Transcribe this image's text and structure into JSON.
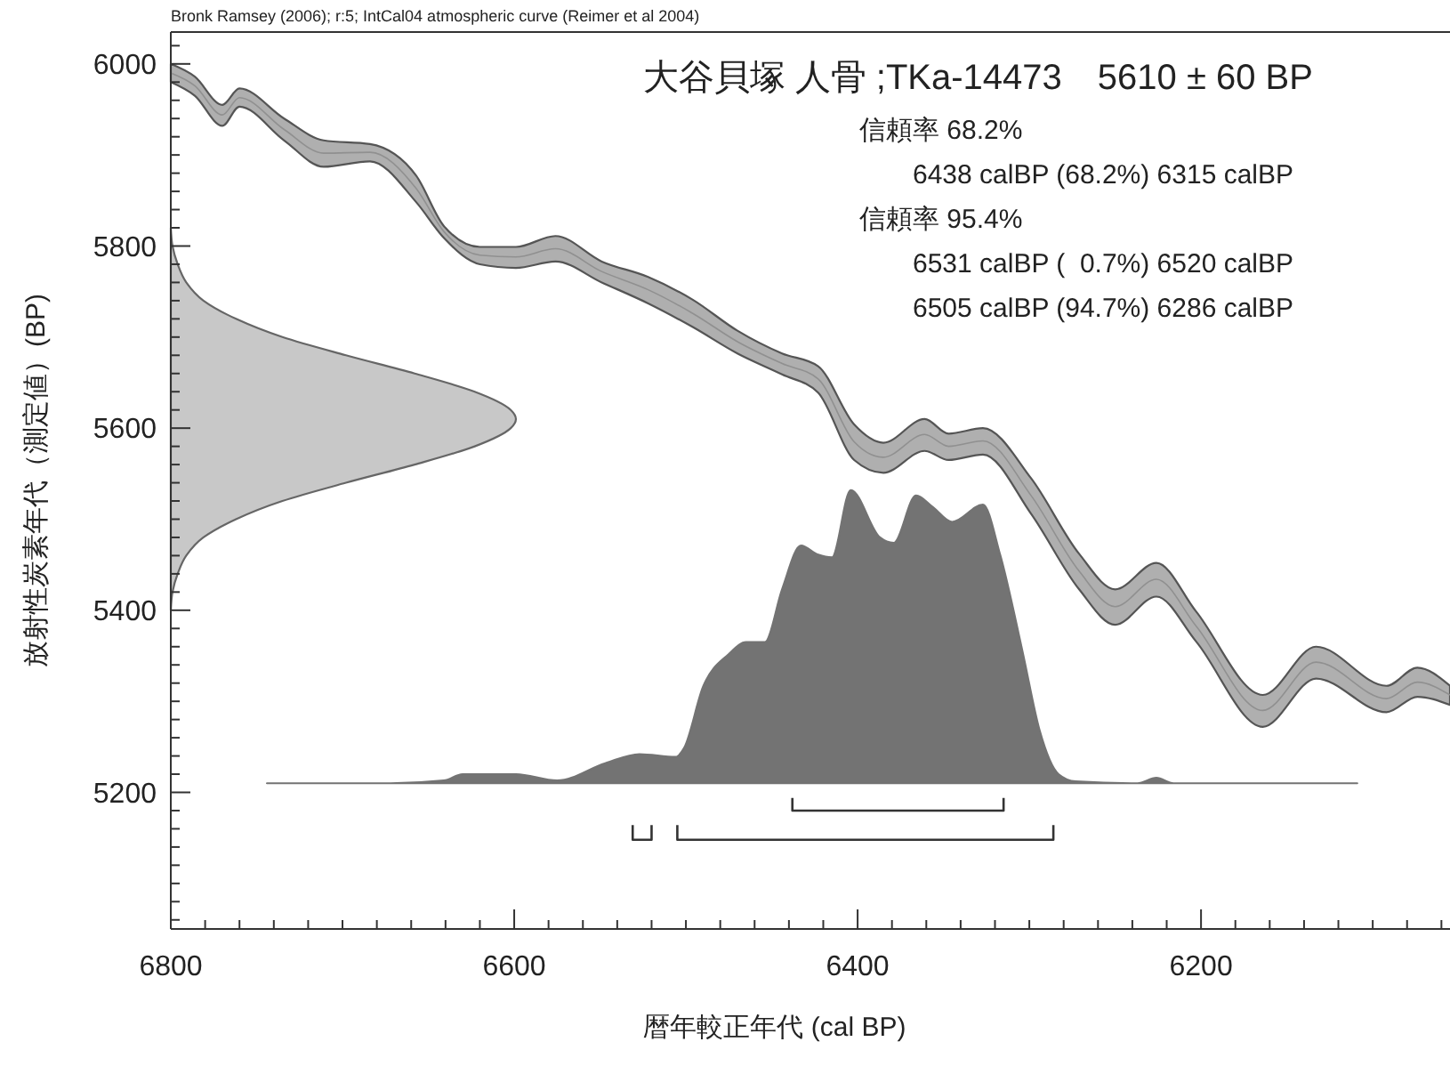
{
  "chart_data": {
    "type": "area",
    "title": "大谷貝塚 人骨 ;TKa-14473　5610 ± 60 BP",
    "subtitle": "Bronk Ramsey (2006); r:5; IntCal04 atmospheric curve (Reimer et al 2004)",
    "xlabel": "暦年較正年代 (cal BP)",
    "ylabel": "放射性炭素年代（測定値）(BP)",
    "xlim": [
      6800,
      6055
    ],
    "ylim": [
      5050,
      6035
    ],
    "xticks": [
      6800,
      {
        "value": 6780,
        "label": null
      },
      {
        "value": 6760,
        "label": null
      },
      {
        "value": 6740,
        "label": null
      },
      {
        "value": 6720,
        "label": null
      },
      {
        "value": 6700,
        "label": null
      },
      {
        "value": 6680,
        "label": null
      },
      {
        "value": 6660,
        "label": null
      },
      {
        "value": 6640,
        "label": null
      },
      {
        "value": 6620,
        "label": null
      },
      6600,
      {
        "value": 6580,
        "label": null
      },
      {
        "value": 6560,
        "label": null
      },
      {
        "value": 6540,
        "label": null
      },
      {
        "value": 6520,
        "label": null
      },
      {
        "value": 6500,
        "label": null
      },
      {
        "value": 6480,
        "label": null
      },
      {
        "value": 6460,
        "label": null
      },
      {
        "value": 6440,
        "label": null
      },
      {
        "value": 6420,
        "label": null
      },
      6400,
      {
        "value": 6380,
        "label": null
      },
      {
        "value": 6360,
        "label": null
      },
      {
        "value": 6340,
        "label": null
      },
      {
        "value": 6320,
        "label": null
      },
      {
        "value": 6300,
        "label": null
      },
      {
        "value": 6280,
        "label": null
      },
      {
        "value": 6260,
        "label": null
      },
      {
        "value": 6240,
        "label": null
      },
      {
        "value": 6220,
        "label": null
      },
      6200,
      {
        "value": 6180,
        "label": null
      },
      {
        "value": 6160,
        "label": null
      },
      {
        "value": 6140,
        "label": null
      },
      {
        "value": 6120,
        "label": null
      },
      {
        "value": 6100,
        "label": null
      },
      {
        "value": 6080,
        "label": null
      },
      {
        "value": 6060,
        "label": null
      }
    ],
    "yticks": [
      {
        "value": 5060,
        "label": null
      },
      {
        "value": 5080,
        "label": null
      },
      {
        "value": 5100,
        "label": null
      },
      {
        "value": 5120,
        "label": null
      },
      {
        "value": 5140,
        "label": null
      },
      {
        "value": 5160,
        "label": null
      },
      {
        "value": 5180,
        "label": null
      },
      5200,
      {
        "value": 5220,
        "label": null
      },
      {
        "value": 5240,
        "label": null
      },
      {
        "value": 5260,
        "label": null
      },
      {
        "value": 5280,
        "label": null
      },
      {
        "value": 5300,
        "label": null
      },
      {
        "value": 5320,
        "label": null
      },
      {
        "value": 5340,
        "label": null
      },
      {
        "value": 5360,
        "label": null
      },
      {
        "value": 5380,
        "label": null
      },
      5400,
      {
        "value": 5420,
        "label": null
      },
      {
        "value": 5440,
        "label": null
      },
      {
        "value": 5460,
        "label": null
      },
      {
        "value": 5480,
        "label": null
      },
      {
        "value": 5500,
        "label": null
      },
      {
        "value": 5520,
        "label": null
      },
      {
        "value": 5540,
        "label": null
      },
      {
        "value": 5560,
        "label": null
      },
      {
        "value": 5580,
        "label": null
      },
      5600,
      {
        "value": 5620,
        "label": null
      },
      {
        "value": 5640,
        "label": null
      },
      {
        "value": 5660,
        "label": null
      },
      {
        "value": 5680,
        "label": null
      },
      {
        "value": 5700,
        "label": null
      },
      {
        "value": 5720,
        "label": null
      },
      {
        "value": 5740,
        "label": null
      },
      {
        "value": 5760,
        "label": null
      },
      {
        "value": 5780,
        "label": null
      },
      5800,
      {
        "value": 5820,
        "label": null
      },
      {
        "value": 5840,
        "label": null
      },
      {
        "value": 5860,
        "label": null
      },
      {
        "value": 5880,
        "label": null
      },
      {
        "value": 5900,
        "label": null
      },
      {
        "value": 5920,
        "label": null
      },
      {
        "value": 5940,
        "label": null
      },
      {
        "value": 5960,
        "label": null
      },
      {
        "value": 5980,
        "label": null
      },
      6000,
      {
        "value": 6020,
        "label": null
      }
    ],
    "series": [
      {
        "type": "line",
        "color": "#909090",
        "x": [
          6800,
          6786,
          6770,
          6760,
          6734,
          6711,
          6684,
          6657,
          6641,
          6620,
          6599,
          6576,
          6549,
          6522,
          6496,
          6470,
          6444,
          6423,
          6402,
          6385,
          6361,
          6347,
          6327,
          6299,
          6271,
          6250,
          6226,
          6203,
          6164,
          6133,
          6092,
          6074,
          6055
        ],
        "values": [
          5990,
          5976,
          5944,
          5963,
          5928,
          5902,
          5903,
          5863,
          5816,
          5790,
          5788,
          5797,
          5772,
          5752,
          5726,
          5695,
          5671,
          5654,
          5585,
          5568,
          5593,
          5580,
          5586,
          5526,
          5443,
          5404,
          5434,
          5383,
          5290,
          5343,
          5303,
          5321,
          5307
        ],
        "upper": [
          6000,
          5986,
          5955,
          5973,
          5940,
          5916,
          5912,
          5877,
          5822,
          5799,
          5799,
          5811,
          5783,
          5766,
          5741,
          5707,
          5682,
          5668,
          5604,
          5584,
          5610,
          5594,
          5600,
          5545,
          5462,
          5423,
          5452,
          5399,
          5307,
          5360,
          5317,
          5337,
          5317
        ],
        "lower": [
          5980,
          5965,
          5932,
          5953,
          5916,
          5887,
          5893,
          5848,
          5809,
          5780,
          5776,
          5783,
          5760,
          5737,
          5711,
          5682,
          5659,
          5639,
          5565,
          5551,
          5575,
          5565,
          5571,
          5506,
          5423,
          5384,
          5415,
          5366,
          5272,
          5325,
          5288,
          5305,
          5296
        ]
      },
      {
        "color": "#c8c8c8",
        "x": [
          6800,
          6799,
          6796,
          6791,
          6781,
          6762,
          6735,
          6698,
          6658,
          6623,
          6602,
          6599,
          6602,
          6623,
          6658,
          6698,
          6735,
          6762,
          6781,
          6791,
          6796,
          6799,
          6800
        ],
        "values": [
          5400,
          5420,
          5440,
          5460,
          5480,
          5500,
          5520,
          5540,
          5560,
          5580,
          5600,
          5610,
          5620,
          5640,
          5660,
          5680,
          5700,
          5720,
          5740,
          5760,
          5780,
          5800,
          5820
        ]
      },
      {
        "color": "#737373",
        "x": [
          6744,
          6672,
          6641,
          6630,
          6599,
          6575,
          6547,
          6527,
          6506,
          6501,
          6490,
          6475,
          6465,
          6454,
          6444,
          6433,
          6423,
          6415,
          6404,
          6387,
          6379,
          6366,
          6356,
          6345,
          6327,
          6317,
          6304,
          6294,
          6283,
          6273,
          6237,
          6226,
          6216,
          6109
        ],
        "values": [
          5210,
          5210,
          5213,
          5220,
          5220,
          5213,
          5232,
          5242,
          5239,
          5249,
          5316,
          5352,
          5365,
          5365,
          5423,
          5471,
          5461,
          5458,
          5532,
          5480,
          5474,
          5526,
          5513,
          5497,
          5516,
          5461,
          5355,
          5268,
          5220,
          5212,
          5210,
          5216,
          5210,
          5210
        ]
      },
      {
        "type": "line",
        "color": "#333333",
        "x": [
          6438,
          6438,
          6315,
          6315
        ],
        "values": [
          5194,
          5180,
          5180,
          5194
        ]
      },
      {
        "type": "line",
        "color": "#333333",
        "x": [
          6531,
          6531,
          6520,
          6520
        ],
        "values": [
          5164,
          5148,
          5148,
          5164
        ]
      },
      {
        "type": "line",
        "color": "#333333",
        "x": [
          6505,
          6505,
          6286,
          6286
        ],
        "values": [
          5164,
          5148,
          5148,
          5164
        ]
      }
    ],
    "annotations": [
      "信頼率 68.2%",
      "6438 calBP (68.2%) 6315 calBP",
      "信頼率 95.4%",
      "6531 calBP (  0.7%) 6520 calBP",
      "6505 calBP (94.7%) 6286 calBP"
    ]
  }
}
